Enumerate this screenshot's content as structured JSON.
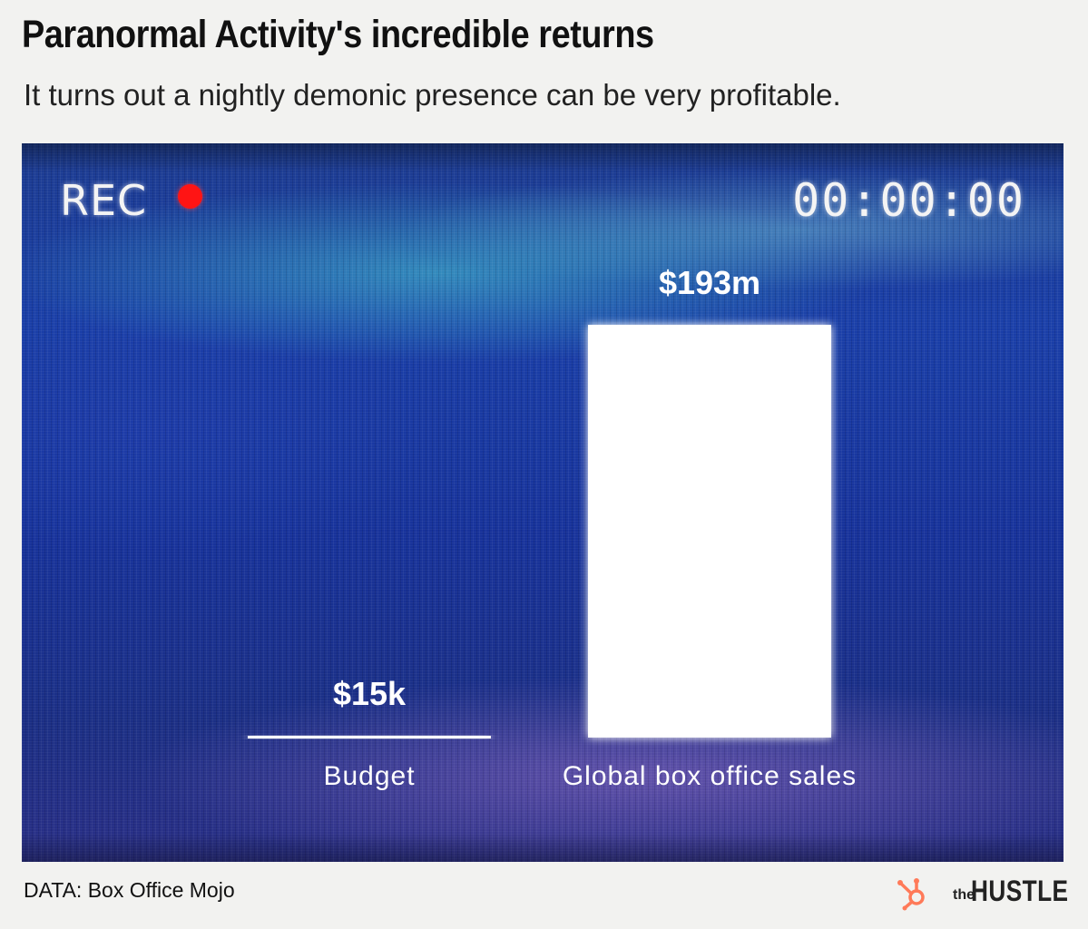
{
  "header": {
    "title": "Paranormal Activity's incredible returns",
    "subtitle": "It turns out a nightly demonic presence can be very profitable."
  },
  "overlay": {
    "rec_label": "REC",
    "timecode": "00:00:00"
  },
  "chart_data": {
    "type": "bar",
    "title": "Paranormal Activity's incredible returns",
    "subtitle": "It turns out a nightly demonic presence can be very profitable.",
    "categories": [
      "Budget",
      "Global box office sales"
    ],
    "values": [
      15000,
      193000000
    ],
    "value_labels": [
      "$15k",
      "$193m"
    ],
    "xlabel": "",
    "ylabel": "",
    "ylim": [
      0,
      193000000
    ],
    "grid": false,
    "legend": "none",
    "bar_color": "#ffffff",
    "background_color": "#1c3a9c"
  },
  "footer": {
    "source": "DATA: Box Office Mojo",
    "brand_small": "the",
    "brand_large": "HUSTLE",
    "brand_icon": "hubspot-sprocket-icon",
    "brand_icon_color": "#ff7a59"
  }
}
